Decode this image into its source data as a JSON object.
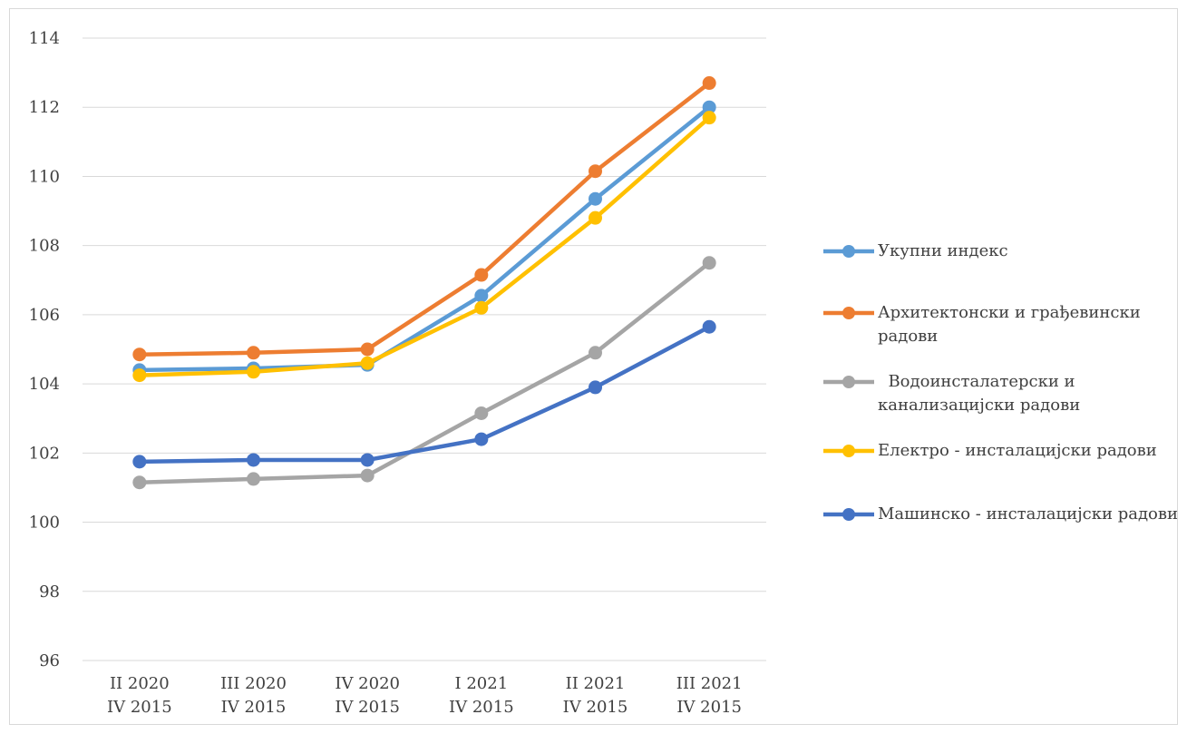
{
  "chart_data": {
    "type": "line",
    "title": "",
    "xlabel": "",
    "ylabel": "",
    "categories": [
      [
        "II 2020",
        "IV 2015"
      ],
      [
        "III 2020",
        "IV 2015"
      ],
      [
        "IV 2020",
        "IV 2015"
      ],
      [
        "I 2021",
        "IV 2015"
      ],
      [
        "II 2021",
        "IV 2015"
      ],
      [
        "III 2021",
        "IV 2015"
      ]
    ],
    "ylim": [
      96,
      114
    ],
    "yticks": [
      "96",
      "98",
      "100",
      "102",
      "104",
      "106",
      "108",
      "110",
      "112",
      "114"
    ],
    "grid": true,
    "legend_position": "right",
    "series": [
      {
        "name": "Укупни индекс",
        "color": "#5B9BD5",
        "values": [
          104.4,
          104.45,
          104.55,
          106.55,
          109.35,
          112.0
        ]
      },
      {
        "name": "Архитектонски и грађевински радови",
        "color": "#ED7D31",
        "values": [
          104.85,
          104.9,
          105.0,
          107.15,
          110.15,
          112.7
        ]
      },
      {
        "name": "  Водоинсталатерски и канализацијски радови",
        "color": "#A5A5A5",
        "values": [
          101.15,
          101.25,
          101.35,
          103.15,
          104.9,
          107.5
        ]
      },
      {
        "name": "Електро - инсталацијски радови",
        "color": "#FFC000",
        "values": [
          104.25,
          104.35,
          104.6,
          106.2,
          108.8,
          111.7
        ]
      },
      {
        "name": "Машинско - инсталацијски радови",
        "color": "#4472C4",
        "values": [
          101.75,
          101.8,
          101.8,
          102.4,
          103.9,
          105.65
        ]
      }
    ]
  }
}
